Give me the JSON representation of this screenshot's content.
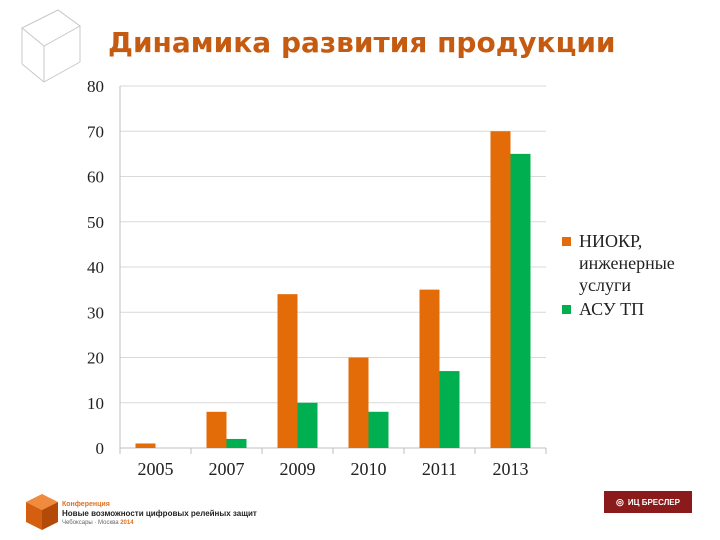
{
  "slide": {
    "title": "Динамика развития продукции"
  },
  "chart_data": {
    "type": "bar",
    "title": "",
    "xlabel": "",
    "ylabel": "",
    "ylim": [
      0,
      80
    ],
    "yticks": [
      0,
      10,
      20,
      30,
      40,
      50,
      60,
      70,
      80
    ],
    "grid": true,
    "legend_position": "right",
    "categories": [
      "2005",
      "2007",
      "2009",
      "2010",
      "2011",
      "2013"
    ],
    "series": [
      {
        "name": "НИОКР, инженерные услуги",
        "color": "#e36c09",
        "values": [
          1,
          8,
          34,
          20,
          35,
          70
        ]
      },
      {
        "name": "АСУ ТП",
        "color": "#00b050",
        "values": [
          0,
          2,
          10,
          8,
          17,
          65
        ]
      }
    ]
  },
  "legend": {
    "items": [
      {
        "lines": [
          "НИОКР,",
          "инженерные",
          "услуги"
        ],
        "color": "#e36c09"
      },
      {
        "lines": [
          "АСУ ТП"
        ],
        "color": "#00b050"
      }
    ]
  },
  "footer": {
    "conference_label": "Конференция",
    "conference_name": "Новые возможности цифровых релейных защит",
    "conference_place_prefix": "Чебоксары · Москва ",
    "conference_year": "2014",
    "brand": "ИЦ БРЕСЛЕР"
  }
}
